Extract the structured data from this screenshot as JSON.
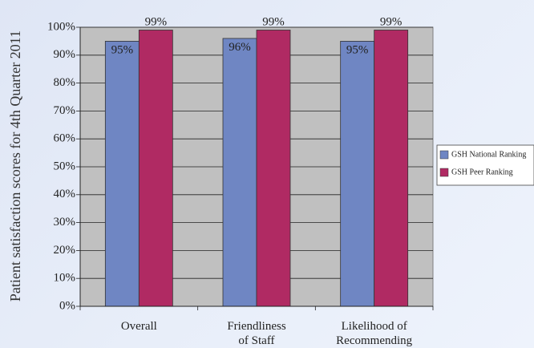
{
  "chart_data": {
    "type": "bar",
    "title": "",
    "xlabel": "",
    "ylabel": "Patient satisfaction scores for 4th Quarter 2011",
    "categories": [
      [
        "Overall"
      ],
      [
        "Friendliness",
        "of Staff"
      ],
      [
        "Likelihood of",
        "Recommending"
      ]
    ],
    "series": [
      {
        "name": "GSH National Ranking",
        "color": "#6f86c3",
        "values": [
          95,
          96,
          95
        ],
        "labels": [
          "95%",
          "96%",
          "95%"
        ]
      },
      {
        "name": "GSH Peer Ranking",
        "color": "#b02a63",
        "values": [
          99,
          99,
          99
        ],
        "labels": [
          "99%",
          "99%",
          "99%"
        ]
      }
    ],
    "ylim": [
      0,
      100
    ],
    "yticks": [
      0,
      10,
      20,
      30,
      40,
      50,
      60,
      70,
      80,
      90,
      100
    ],
    "ytick_labels": [
      "0%",
      "10%",
      "20%",
      "30%",
      "40%",
      "50%",
      "60%",
      "70%",
      "80%",
      "90%",
      "100%"
    ],
    "grid": true,
    "plot_background": "#c0c0c0",
    "legend_position": "right"
  }
}
